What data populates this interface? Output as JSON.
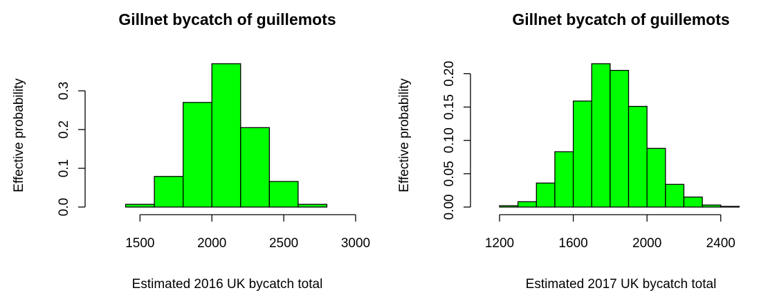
{
  "chart_data": [
    {
      "type": "histogram",
      "title": "Gillnet bycatch of guillemots",
      "x_label": "Estimated 2016 UK bycatch total",
      "y_label": "Effective probability",
      "bins": [
        1200,
        1400,
        1600,
        1800,
        2000,
        2200,
        2400,
        2600,
        2800,
        3000
      ],
      "values": [
        0,
        0.007,
        0.079,
        0.27,
        0.37,
        0.205,
        0.066,
        0.007,
        0
      ],
      "color": "#00ff00",
      "xlim": [
        1200,
        3000
      ],
      "xticks": [
        1500,
        2000,
        2500,
        3000
      ],
      "ylim": [
        0,
        0.37
      ],
      "yticks": [
        {
          "value": 0,
          "label": "0.0"
        },
        0.1,
        0.2,
        0.3
      ]
    },
    {
      "type": "histogram",
      "title": "Gillnet bycatch of guillemots",
      "x_label": "Estimated 2017 UK bycatch total",
      "y_label": "Effective probability",
      "bins": [
        1200,
        1300,
        1400,
        1500,
        1600,
        1700,
        1800,
        1900,
        2000,
        2100,
        2200,
        2300,
        2400,
        2500
      ],
      "values": [
        0.002,
        0.008,
        0.036,
        0.083,
        0.159,
        0.215,
        0.205,
        0.151,
        0.088,
        0.034,
        0.015,
        0.003,
        0.001
      ],
      "color": "#00ff00",
      "xlim": [
        1200,
        2600
      ],
      "xticks": [
        1200,
        1600,
        2000,
        2400
      ],
      "ylim": [
        0,
        0.215
      ],
      "yticks": [
        {
          "value": 0,
          "label": "0.00"
        },
        0.05,
        {
          "value": 0.1,
          "label": "0.10"
        },
        0.15,
        {
          "value": 0.2,
          "label": "0.20"
        }
      ]
    }
  ]
}
